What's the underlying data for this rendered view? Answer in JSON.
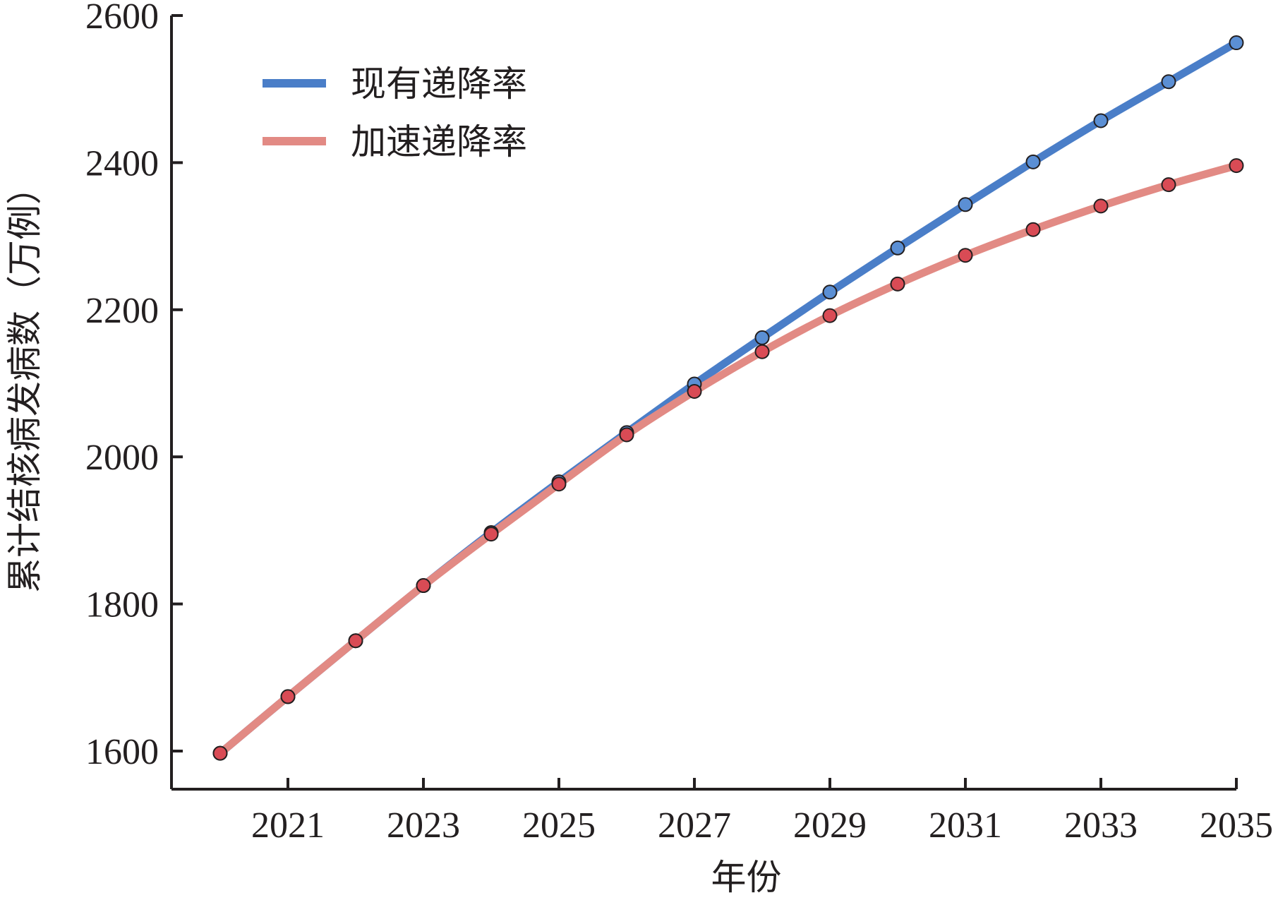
{
  "chart_data": {
    "type": "line",
    "title": "",
    "xlabel": "年份",
    "ylabel": "累计结核病发病数（万例）",
    "xlim": [
      2020,
      2035
    ],
    "ylim": [
      1600,
      2600
    ],
    "x_ticks": [
      "2021",
      "2023",
      "2025",
      "2027",
      "2029",
      "2031",
      "2033",
      "2035"
    ],
    "y_ticks": [
      "1600",
      "1800",
      "2000",
      "2200",
      "2400",
      "2600"
    ],
    "legend_position": "top-left",
    "grid": false,
    "series": [
      {
        "name": "现有递降率",
        "color": "#4a7ec8",
        "marker_color": "#5b8fd4",
        "x": [
          2020,
          2021,
          2022,
          2023,
          2024,
          2025,
          2026,
          2027,
          2028,
          2029,
          2030,
          2031,
          2032,
          2033,
          2034,
          2035
        ],
        "values": [
          1597,
          1674,
          1750,
          1825,
          1897,
          1966,
          2033,
          2099,
          2162,
          2224,
          2284,
          2343,
          2401,
          2457,
          2510,
          2563
        ]
      },
      {
        "name": "加速递降率",
        "color": "#e28a84",
        "marker_color": "#d94b55",
        "x": [
          2020,
          2021,
          2022,
          2023,
          2024,
          2025,
          2026,
          2027,
          2028,
          2029,
          2030,
          2031,
          2032,
          2033,
          2034,
          2035
        ],
        "values": [
          1597,
          1674,
          1750,
          1825,
          1895,
          1963,
          2030,
          2089,
          2143,
          2192,
          2235,
          2274,
          2309,
          2341,
          2370,
          2396
        ]
      }
    ]
  }
}
